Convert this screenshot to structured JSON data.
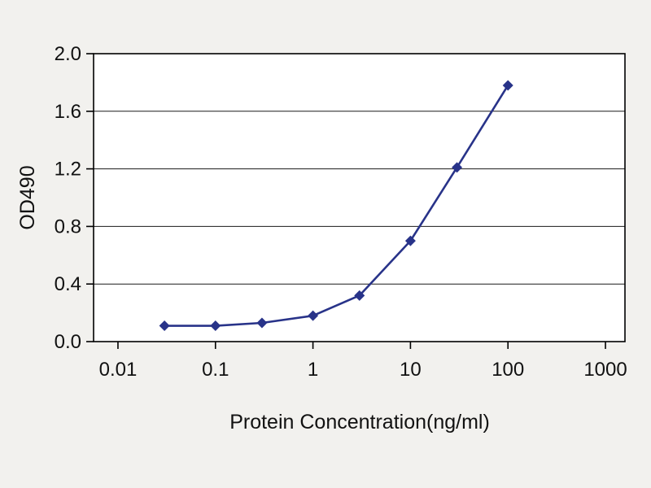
{
  "figure": {
    "background": "#f2f1ee",
    "plot_background": "#ffffff",
    "line_color": "#283389",
    "marker_color": "#283389",
    "axis_color": "#000000",
    "grid_color": "#1a1a1a"
  },
  "chart_data": {
    "type": "line",
    "title": "",
    "xlabel": "Protein Concentration(ng/ml)",
    "ylabel": "OD490",
    "x_scale": "log",
    "xlim_log": [
      -2.25,
      3.2
    ],
    "ylim": [
      0,
      2.0
    ],
    "x_ticks": [
      0.01,
      0.1,
      1,
      10,
      100,
      1000
    ],
    "x_tick_labels": [
      "0.01",
      "0.1",
      "1",
      "10",
      "100",
      "1000"
    ],
    "y_ticks": [
      0.0,
      0.4,
      0.8,
      1.2,
      1.6,
      2.0
    ],
    "y_tick_labels": [
      "0.0",
      "0.4",
      "0.8",
      "1.2",
      "1.6",
      "2.0"
    ],
    "grid": "horizontal",
    "legend": "none",
    "marker": "diamond",
    "series": [
      {
        "name": "OD490",
        "x": [
          0.03,
          0.1,
          0.3,
          1,
          3,
          10,
          30,
          100
        ],
        "y": [
          0.11,
          0.11,
          0.13,
          0.18,
          0.32,
          0.7,
          1.21,
          1.78
        ]
      }
    ]
  }
}
